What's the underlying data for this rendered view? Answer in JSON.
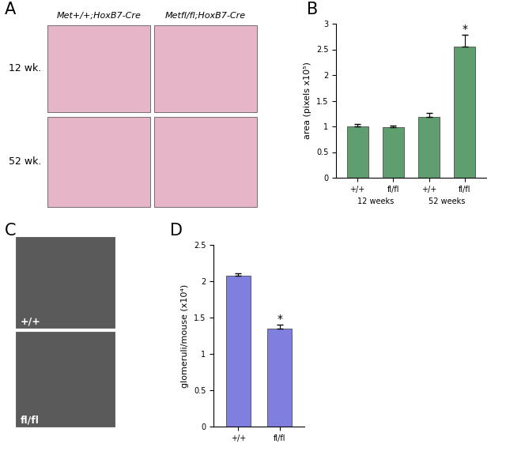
{
  "panel_labels": [
    "A",
    "B",
    "C",
    "D"
  ],
  "images": {
    "A": {
      "column_labels": [
        "Met+/+;HoxB7-Cre",
        "Metfl/fl;HoxB7-Cre"
      ],
      "row_labels": [
        "12 wk.",
        "52 wk."
      ]
    },
    "C": {
      "labels": [
        "+/+",
        "fl/fl"
      ]
    }
  },
  "chart_data": [
    {
      "type": "bar",
      "ylabel": "area (pixels x10⁵)",
      "categories": [
        "+/+",
        "fl/fl",
        "+/+",
        "fl/fl"
      ],
      "group_labels": [
        "12 weeks",
        "52 weeks"
      ],
      "values": [
        1.0,
        0.98,
        1.19,
        2.55
      ],
      "errors": [
        0.05,
        0.04,
        0.07,
        0.23
      ],
      "color": "#5f9e6e",
      "ylim": [
        0,
        3
      ],
      "yticks": [
        0,
        0.5,
        1,
        1.5,
        2,
        2.5,
        3
      ],
      "annotations": [
        {
          "text": "*",
          "index": 3
        }
      ]
    },
    {
      "type": "bar",
      "ylabel": "glomeruli/mouse (x10⁴)",
      "categories": [
        "+/+",
        "fl/fl"
      ],
      "values": [
        2.08,
        1.35
      ],
      "errors": [
        0.03,
        0.05
      ],
      "color": "#7f7fe0",
      "ylim": [
        0,
        2.5
      ],
      "yticks": [
        0,
        0.5,
        1,
        1.5,
        2,
        2.5
      ],
      "annotations": [
        {
          "text": "*",
          "index": 1
        }
      ]
    }
  ]
}
